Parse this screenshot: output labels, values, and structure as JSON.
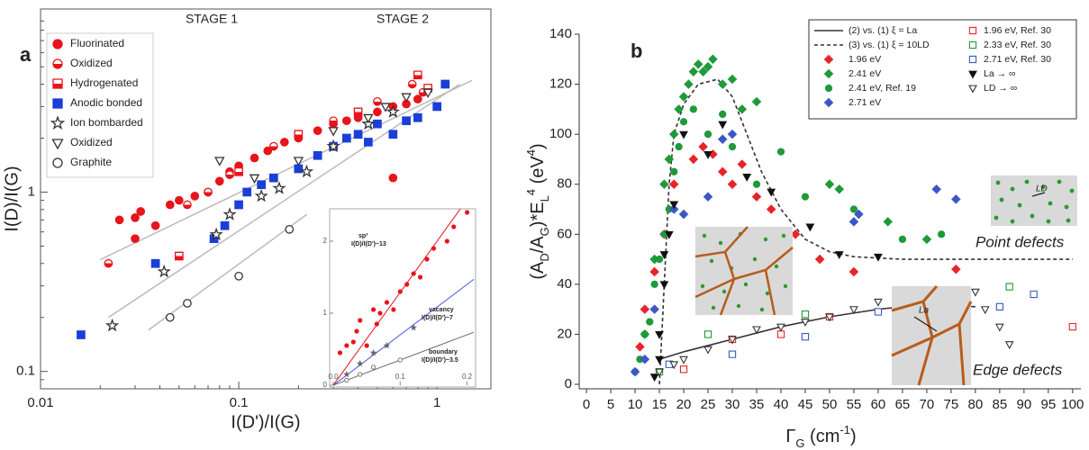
{
  "chart_data": [
    {
      "type": "scatter",
      "panel_label": "a",
      "x_label": "I(D')/I(G)",
      "y_label": "I(D)/I(G)",
      "annotations": [
        "STAGE 1",
        "STAGE 2"
      ],
      "log_x": true,
      "log_y": true,
      "xlim": [
        0.01,
        1.87
      ],
      "ylim": [
        0.08,
        10.5
      ],
      "xticks": [
        0.01,
        0.1,
        1
      ],
      "yticks": [
        0.1,
        1
      ],
      "legend": "upper left",
      "series": [
        {
          "name": "Fluorinated",
          "color": "#e8141b",
          "marker": "circle",
          "fill": "full",
          "x": [
            0.025,
            0.03,
            0.03,
            0.032,
            0.038,
            0.045,
            0.05,
            0.06,
            0.07,
            0.08,
            0.09,
            0.1,
            0.12,
            0.14,
            0.17,
            0.2,
            0.25,
            0.3,
            0.35,
            0.4,
            0.5,
            0.6,
            0.6,
            0.7,
            0.8
          ],
          "values": [
            0.7,
            0.72,
            0.55,
            0.78,
            0.65,
            0.85,
            0.9,
            0.95,
            1.0,
            1.15,
            1.3,
            1.4,
            1.55,
            1.7,
            1.9,
            2.0,
            2.2,
            2.4,
            2.5,
            2.6,
            2.8,
            3.0,
            1.2,
            3.1,
            3.3
          ]
        },
        {
          "name": "Oxidized",
          "color": "#e8141b",
          "marker": "circle",
          "fill": "half",
          "x": [
            0.022,
            0.055,
            0.07,
            0.09,
            0.15,
            0.3,
            0.5,
            0.75,
            0.85
          ],
          "values": [
            0.4,
            0.85,
            1.0,
            1.25,
            1.8,
            2.5,
            3.2,
            4.0,
            3.6
          ]
        },
        {
          "name": "Hydrogenated",
          "color": "#e8141b",
          "marker": "square",
          "fill": "half",
          "x": [
            0.05,
            0.1,
            0.2,
            0.4,
            0.8,
            0.9
          ],
          "values": [
            0.44,
            1.3,
            2.1,
            2.8,
            4.5,
            3.8
          ]
        },
        {
          "name": "Anodic bonded",
          "color": "#1a3fd8",
          "marker": "square",
          "fill": "full",
          "x": [
            0.016,
            0.038,
            0.075,
            0.085,
            0.1,
            0.11,
            0.13,
            0.15,
            0.2,
            0.25,
            0.3,
            0.35,
            0.4,
            0.45,
            0.5,
            0.6,
            0.7,
            0.8,
            1.0,
            1.1
          ],
          "values": [
            0.16,
            0.4,
            0.55,
            0.65,
            0.85,
            1.0,
            1.1,
            1.2,
            1.35,
            1.6,
            1.8,
            2.0,
            2.1,
            1.9,
            2.4,
            2.1,
            2.5,
            2.6,
            3.0,
            4.0
          ]
        },
        {
          "name": "Ion bombarded",
          "color": "#333333",
          "marker": "star",
          "fill": "none",
          "x": [
            0.023,
            0.042,
            0.077,
            0.09,
            0.13,
            0.16,
            0.22,
            0.3,
            0.45,
            0.6
          ],
          "values": [
            0.18,
            0.36,
            0.58,
            0.75,
            0.95,
            1.05,
            1.3,
            1.8,
            2.4,
            2.8
          ]
        },
        {
          "name": "Oxidized",
          "color": "#333333",
          "marker": "triangle-down",
          "fill": "none",
          "x": [
            0.08,
            0.12,
            0.2,
            0.3,
            0.45,
            0.55,
            0.7,
            0.9
          ],
          "values": [
            1.5,
            1.2,
            1.5,
            2.2,
            2.6,
            3.0,
            3.4,
            3.6
          ]
        },
        {
          "name": "Graphite",
          "color": "#333333",
          "marker": "circle",
          "fill": "none",
          "x": [
            0.045,
            0.055,
            0.1,
            0.18
          ],
          "values": [
            0.2,
            0.24,
            0.34,
            0.62
          ]
        }
      ],
      "fit_lines": [
        {
          "color": "#bbbbbb",
          "x": [
            0.02,
            1.5
          ],
          "values": [
            0.42,
            4.2
          ]
        },
        {
          "color": "#bbbbbb",
          "x": [
            0.022,
            1.3
          ],
          "values": [
            0.2,
            4.0
          ]
        },
        {
          "color": "#bbbbbb",
          "x": [
            0.035,
            0.22
          ],
          "values": [
            0.17,
            0.75
          ]
        }
      ]
    },
    {
      "type": "scatter",
      "xlim": [
        0,
        0.21
      ],
      "ylim": [
        0,
        2.45
      ],
      "xticks": [
        {
          "value": 0,
          "label": "0.0"
        },
        0.1,
        0.2
      ],
      "yticks": [
        0,
        1,
        2
      ],
      "lines": [
        {
          "name": "sp³",
          "note": "I(D)/I(D')~13",
          "color": "#e8141b",
          "x": [
            0,
            0.19
          ],
          "values": [
            0,
            2.45
          ]
        },
        {
          "name": "vacancy",
          "note": "I(D)/I(D')~7",
          "color": "#4455ee",
          "x": [
            0,
            0.21
          ],
          "values": [
            0,
            1.47
          ]
        },
        {
          "name": "boundary",
          "note": "I(D)/I(D')~3.5",
          "color": "#666666",
          "x": [
            0,
            0.21
          ],
          "values": [
            0,
            0.735
          ]
        }
      ],
      "series": [
        {
          "color": "#e8141b",
          "marker": "circle",
          "fill": "full",
          "x": [
            0.01,
            0.02,
            0.03,
            0.035,
            0.04,
            0.05,
            0.06,
            0.065,
            0.07,
            0.08,
            0.09,
            0.1,
            0.11,
            0.12,
            0.13,
            0.14,
            0.15,
            0.17,
            0.18,
            0.2
          ],
          "values": [
            0.45,
            0.55,
            0.6,
            0.75,
            0.9,
            0.55,
            1.05,
            0.85,
            1.0,
            1.15,
            1.05,
            1.3,
            1.4,
            1.55,
            1.5,
            1.75,
            1.9,
            2.0,
            2.2,
            2.4
          ]
        },
        {
          "color": "#666666",
          "marker": "star",
          "fill": "full",
          "x": [
            0.02,
            0.04,
            0.06,
            0.08,
            0.12
          ],
          "values": [
            0.15,
            0.3,
            0.45,
            0.55,
            0.8
          ]
        },
        {
          "color": "#666666",
          "marker": "circle",
          "fill": "none",
          "x": [
            0.02,
            0.04,
            0.06,
            0.1
          ],
          "values": [
            0.07,
            0.15,
            0.25,
            0.35
          ]
        }
      ]
    },
    {
      "type": "scatter",
      "panel_label": "b",
      "x_label": [
        {
          "text": "Γ"
        },
        {
          "text": "G",
          "pos": "sub"
        },
        {
          "text": " (cm"
        },
        {
          "text": "-1",
          "pos": "sup"
        },
        {
          "text": ")"
        }
      ],
      "y_label": [
        {
          "text": "(A"
        },
        {
          "text": "D",
          "pos": "sub"
        },
        {
          "text": "/A"
        },
        {
          "text": "G",
          "pos": "sub"
        },
        {
          "text": ")*E"
        },
        {
          "text": "L",
          "pos": "sub"
        },
        {
          "text": "4",
          "pos": "sup"
        },
        {
          "text": " (eV"
        },
        {
          "text": "4",
          "pos": "sup"
        },
        {
          "text": ")"
        }
      ],
      "annotations": [
        "Point defects",
        "Edge defects"
      ],
      "inset_labels": [
        "LD",
        "La"
      ],
      "xlim": [
        -1.5,
        101.7
      ],
      "ylim": [
        -1.8,
        140
      ],
      "xticks": [
        0,
        5,
        10,
        15,
        20,
        25,
        30,
        35,
        40,
        45,
        50,
        55,
        60,
        65,
        70,
        75,
        80,
        85,
        90,
        95,
        100
      ],
      "yticks": [
        0,
        20,
        40,
        60,
        80,
        100,
        120,
        140
      ],
      "legend": "upper right",
      "series": [
        {
          "name": "(2) vs. (1) ξ = La",
          "kind": "line",
          "color": "#333333",
          "dash": false,
          "x": [
            15,
            20,
            30,
            40,
            50,
            60,
            70,
            80
          ],
          "values": [
            10,
            13,
            18,
            23,
            27,
            30,
            32,
            31
          ]
        },
        {
          "name": "(3) vs. (1) ξ = 10LD",
          "kind": "line",
          "color": "#333333",
          "dash": true,
          "x": [
            15,
            16,
            17,
            18,
            20,
            23,
            27,
            30,
            33,
            36,
            40,
            45,
            50,
            55,
            65,
            80,
            100
          ],
          "values": [
            0,
            40,
            80,
            100,
            112,
            120,
            122,
            115,
            100,
            85,
            70,
            58,
            53,
            51,
            50,
            50,
            50
          ]
        },
        {
          "name": "1.96 eV",
          "kind": "scatter",
          "color": "#e8242b",
          "marker": "diamond",
          "fill": "full",
          "x": [
            11,
            12,
            14,
            16,
            18,
            22,
            24,
            26,
            28,
            30,
            32,
            35,
            38,
            43,
            48,
            55,
            76
          ],
          "values": [
            15,
            30,
            45,
            60,
            80,
            90,
            95,
            92,
            85,
            80,
            88,
            75,
            70,
            60,
            50,
            45,
            46
          ]
        },
        {
          "name": "2.41 eV",
          "kind": "scatter",
          "color": "#1f9a3a",
          "marker": "diamond",
          "fill": "full",
          "x": [
            12,
            14,
            16,
            17,
            18,
            19,
            20,
            21,
            22,
            23,
            24,
            25,
            26,
            28,
            30,
            32,
            35,
            50,
            52,
            62,
            70
          ],
          "values": [
            20,
            50,
            80,
            90,
            100,
            110,
            115,
            120,
            125,
            128,
            125,
            127,
            130,
            120,
            122,
            110,
            113,
            80,
            78,
            65,
            58
          ]
        },
        {
          "name": "2.41 eV, Ref. 19",
          "kind": "scatter",
          "color": "#1f9a3a",
          "marker": "circle",
          "fill": "full",
          "x": [
            10,
            11,
            12,
            13,
            14,
            15,
            16,
            17,
            18,
            19,
            20,
            22,
            25,
            28,
            30,
            35,
            40,
            45,
            55,
            65,
            73
          ],
          "values": [
            5,
            10,
            20,
            25,
            40,
            50,
            60,
            70,
            85,
            95,
            105,
            110,
            100,
            108,
            95,
            80,
            93,
            75,
            70,
            58,
            60
          ]
        },
        {
          "name": "2.71 eV",
          "kind": "scatter",
          "color": "#3b58c4",
          "marker": "diamond",
          "fill": "full",
          "x": [
            10,
            12,
            14,
            18,
            20,
            25,
            28,
            30,
            55,
            56,
            72,
            76
          ],
          "values": [
            5,
            10,
            30,
            70,
            68,
            75,
            98,
            100,
            65,
            68,
            78,
            74
          ]
        },
        {
          "name": "1.96 eV, Ref. 30",
          "kind": "scatter",
          "color": "#e8242b",
          "marker": "square",
          "fill": "none",
          "x": [
            20,
            30,
            40,
            50,
            100
          ],
          "values": [
            6,
            18,
            20,
            27,
            23
          ]
        },
        {
          "name": "2.33 eV, Ref. 30",
          "kind": "scatter",
          "color": "#1f9a3a",
          "marker": "square",
          "fill": "none",
          "x": [
            15,
            25,
            45,
            67,
            87
          ],
          "values": [
            5,
            20,
            28,
            33,
            39
          ]
        },
        {
          "name": "2.71 eV, Ref. 30",
          "kind": "scatter",
          "color": "#3b58c4",
          "marker": "square",
          "fill": "none",
          "x": [
            17,
            30,
            45,
            60,
            85,
            92
          ],
          "values": [
            8,
            12,
            19,
            29,
            31,
            36
          ]
        },
        {
          "name": "La → ∞",
          "kind": "scatter",
          "color": "#111111",
          "marker": "triangle-down",
          "fill": "full",
          "x": [
            14,
            15,
            15,
            16,
            16,
            17,
            18,
            20,
            25,
            28,
            33,
            38,
            46,
            52,
            60
          ],
          "values": [
            3,
            10,
            20,
            40,
            52,
            60,
            72,
            100,
            92,
            104,
            83,
            77,
            63,
            52,
            51
          ]
        },
        {
          "name": "LD → ∞",
          "kind": "scatter",
          "color": "#333333",
          "marker": "triangle-down",
          "fill": "none",
          "x": [
            15,
            18,
            20,
            25,
            30,
            35,
            40,
            45,
            50,
            55,
            60,
            65,
            70,
            75,
            80,
            82,
            85,
            87
          ],
          "values": [
            5,
            8,
            10,
            14,
            18,
            22,
            23,
            25,
            27,
            30,
            33,
            35,
            38,
            38,
            37,
            30,
            23,
            16
          ]
        }
      ]
    }
  ]
}
